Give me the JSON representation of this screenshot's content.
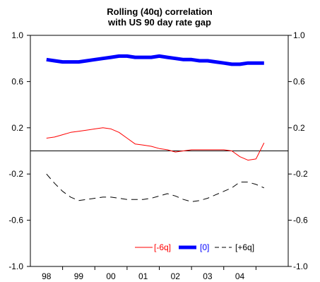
{
  "chart_data": {
    "type": "line",
    "title": "Rolling (40q) correlation",
    "subtitle": "with US 90 day rate gap",
    "xlabel": "",
    "ylabel": "",
    "x_tick_labels": [
      "98",
      "99",
      "00",
      "01",
      "02",
      "03",
      "04"
    ],
    "y_tick_labels": [
      "1.0",
      "0.6",
      "0.2",
      "-0.2",
      "-0.6",
      "-1.0"
    ],
    "ylim": [
      -1.0,
      1.0
    ],
    "xlim": [
      1997.5,
      2005.5
    ],
    "y_ticks": [
      1.0,
      0.6,
      0.2,
      -0.2,
      -0.6,
      -1.0
    ],
    "x_ticks": [
      1998,
      1999,
      2000,
      2001,
      2002,
      2003,
      2004
    ],
    "zero_line": 0,
    "grid": false,
    "legend_position": "bottom-right",
    "x": [
      1998.0,
      1998.25,
      1998.5,
      1998.75,
      1999.0,
      1999.25,
      1999.5,
      1999.75,
      2000.0,
      2000.25,
      2000.5,
      2000.75,
      2001.0,
      2001.25,
      2001.5,
      2001.75,
      2002.0,
      2002.25,
      2002.5,
      2002.75,
      2003.0,
      2003.25,
      2003.5,
      2003.75,
      2004.0,
      2004.25,
      2004.5,
      2004.75
    ],
    "series": [
      {
        "name": "[-6q]",
        "color": "#ff0000",
        "style": "solid-thin",
        "values": [
          0.11,
          0.12,
          0.14,
          0.16,
          0.17,
          0.18,
          0.19,
          0.2,
          0.19,
          0.16,
          0.11,
          0.06,
          0.05,
          0.04,
          0.02,
          0.01,
          -0.01,
          0.0,
          0.01,
          0.01,
          0.01,
          0.01,
          0.01,
          0.0,
          -0.05,
          -0.08,
          -0.07,
          0.07
        ]
      },
      {
        "name": "[0]",
        "color": "#0000ff",
        "style": "solid-thick",
        "values": [
          0.79,
          0.78,
          0.77,
          0.77,
          0.77,
          0.78,
          0.79,
          0.8,
          0.81,
          0.82,
          0.82,
          0.81,
          0.81,
          0.81,
          0.82,
          0.81,
          0.8,
          0.79,
          0.79,
          0.78,
          0.78,
          0.77,
          0.76,
          0.75,
          0.75,
          0.76,
          0.76,
          0.76
        ]
      },
      {
        "name": "[+6q]",
        "color": "#000000",
        "style": "dashed",
        "values": [
          -0.2,
          -0.28,
          -0.35,
          -0.4,
          -0.43,
          -0.42,
          -0.41,
          -0.4,
          -0.4,
          -0.41,
          -0.42,
          -0.42,
          -0.42,
          -0.41,
          -0.39,
          -0.37,
          -0.39,
          -0.42,
          -0.44,
          -0.43,
          -0.41,
          -0.38,
          -0.35,
          -0.32,
          -0.27,
          -0.27,
          -0.29,
          -0.32
        ]
      }
    ]
  }
}
